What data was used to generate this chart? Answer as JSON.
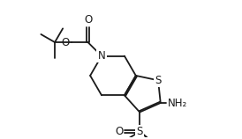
{
  "bg_color": "#ffffff",
  "line_color": "#1a1a1a",
  "line_width": 1.3,
  "font_size": 8.5,
  "NH2": "NH₂",
  "O_label": "O",
  "N_label": "N",
  "S_label": "S"
}
